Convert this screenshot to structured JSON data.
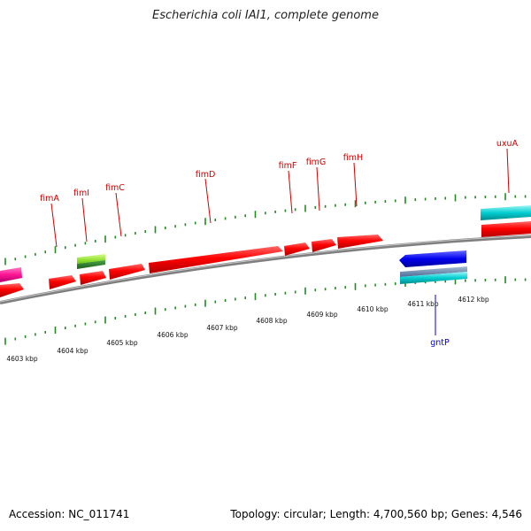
{
  "title": "Escherichia coli IAI1, complete genome",
  "footer": {
    "accession": "Accession: NC_011741",
    "stats": "Topology: circular; Length: 4,700,560 bp; Genes: 4,546"
  },
  "colors": {
    "cds": "#ff0000",
    "cds_alt": "#ff1493",
    "rna": "#00ced1",
    "blue_gene": "#0000ee",
    "lime": "#99ff33",
    "tick": "#228b22",
    "backbone": "#888888",
    "label_red": "#cc0000",
    "label_blue": "#0000cc"
  },
  "gene_labels": [
    "fimA",
    "fimI",
    "fimC",
    "fimD",
    "fimF",
    "fimG",
    "fimH",
    "uxuA",
    "gntP"
  ],
  "kbp_labels": [
    "4603 kbp",
    "4604 kbp",
    "4605 kbp",
    "4606 kbp",
    "4607 kbp",
    "4608 kbp",
    "4609 kbp",
    "4610 kbp",
    "4611 kbp",
    "4612 kbp"
  ]
}
